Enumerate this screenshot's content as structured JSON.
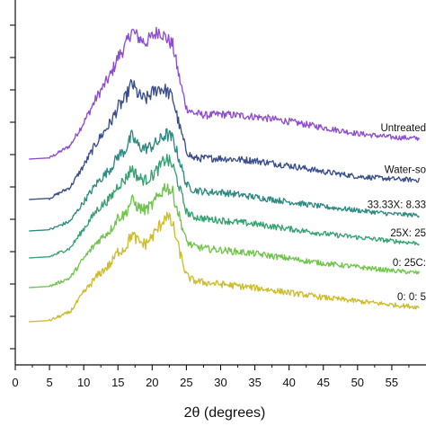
{
  "chart_data": {
    "type": "line",
    "title": "",
    "xlabel": "2θ (degrees)",
    "ylabel": "",
    "xlim": [
      0,
      60
    ],
    "xticks": [
      0,
      5,
      10,
      15,
      20,
      25,
      30,
      35,
      40,
      45,
      50,
      55
    ],
    "grid": false,
    "legend": "none",
    "y_tick_labels_visible": "clipped at left edge",
    "series": [
      {
        "name": "Untreated",
        "color": "#8e4ecf",
        "points": [
          [
            2,
            0
          ],
          [
            5,
            0.05
          ],
          [
            8,
            0.55
          ],
          [
            10,
            1.5
          ],
          [
            12,
            2.6
          ],
          [
            14,
            3.5
          ],
          [
            15,
            4.2
          ],
          [
            16,
            4.6
          ],
          [
            17,
            5.3
          ],
          [
            18,
            5.0
          ],
          [
            19,
            4.8
          ],
          [
            20,
            5.05
          ],
          [
            21,
            5.3
          ],
          [
            22,
            5.0
          ],
          [
            23,
            4.7
          ],
          [
            24,
            3.3
          ],
          [
            25,
            2.1
          ],
          [
            26,
            1.9
          ],
          [
            28,
            1.8
          ],
          [
            30,
            1.85
          ],
          [
            35,
            1.75
          ],
          [
            40,
            1.55
          ],
          [
            45,
            1.3
          ],
          [
            50,
            1.05
          ],
          [
            55,
            0.9
          ],
          [
            59,
            0.85
          ]
        ]
      },
      {
        "name": "Water-so",
        "color": "#3a4e8c",
        "points": [
          [
            2,
            0
          ],
          [
            5,
            0.05
          ],
          [
            8,
            0.5
          ],
          [
            10,
            1.4
          ],
          [
            12,
            2.4
          ],
          [
            14,
            3.2
          ],
          [
            15,
            3.8
          ],
          [
            16,
            4.1
          ],
          [
            17,
            4.8
          ],
          [
            18,
            4.3
          ],
          [
            19,
            4.1
          ],
          [
            20,
            4.4
          ],
          [
            21,
            4.6
          ],
          [
            22,
            4.5
          ],
          [
            23,
            4.2
          ],
          [
            24,
            3.0
          ],
          [
            25,
            2.0
          ],
          [
            26,
            1.7
          ],
          [
            28,
            1.7
          ],
          [
            30,
            1.7
          ],
          [
            35,
            1.6
          ],
          [
            40,
            1.4
          ],
          [
            45,
            1.15
          ],
          [
            50,
            0.95
          ],
          [
            55,
            0.85
          ],
          [
            59,
            0.8
          ]
        ]
      },
      {
        "name": "33.33X: 8.33",
        "color": "#2e8a82",
        "points": [
          [
            2,
            0
          ],
          [
            5,
            0.05
          ],
          [
            8,
            0.4
          ],
          [
            10,
            1.2
          ],
          [
            12,
            2.0
          ],
          [
            14,
            2.6
          ],
          [
            15,
            3.1
          ],
          [
            16,
            3.3
          ],
          [
            17,
            3.9
          ],
          [
            18,
            3.5
          ],
          [
            19,
            3.4
          ],
          [
            20,
            3.5
          ],
          [
            21,
            3.7
          ],
          [
            22,
            4.0
          ],
          [
            23,
            3.8
          ],
          [
            24,
            2.9
          ],
          [
            25,
            1.9
          ],
          [
            26,
            1.7
          ],
          [
            28,
            1.6
          ],
          [
            30,
            1.6
          ],
          [
            35,
            1.4
          ],
          [
            40,
            1.2
          ],
          [
            45,
            1.0
          ],
          [
            50,
            0.85
          ],
          [
            55,
            0.7
          ],
          [
            59,
            0.65
          ]
        ]
      },
      {
        "name": "25X: 25",
        "color": "#35a271",
        "points": [
          [
            2,
            0
          ],
          [
            5,
            0.05
          ],
          [
            8,
            0.4
          ],
          [
            10,
            1.2
          ],
          [
            12,
            2.0
          ],
          [
            14,
            2.5
          ],
          [
            15,
            3.0
          ],
          [
            16,
            3.2
          ],
          [
            17,
            3.7
          ],
          [
            18,
            3.3
          ],
          [
            19,
            3.2
          ],
          [
            20,
            3.4
          ],
          [
            21,
            3.7
          ],
          [
            22,
            4.1
          ],
          [
            23,
            3.8
          ],
          [
            24,
            2.9
          ],
          [
            25,
            1.9
          ],
          [
            26,
            1.7
          ],
          [
            28,
            1.6
          ],
          [
            30,
            1.55
          ],
          [
            35,
            1.4
          ],
          [
            40,
            1.2
          ],
          [
            45,
            1.0
          ],
          [
            50,
            0.85
          ],
          [
            55,
            0.7
          ],
          [
            59,
            0.6
          ]
        ]
      },
      {
        "name": "0: 25C:",
        "color": "#6fc64a",
        "points": [
          [
            2,
            0
          ],
          [
            5,
            0.05
          ],
          [
            8,
            0.4
          ],
          [
            10,
            1.2
          ],
          [
            12,
            1.9
          ],
          [
            14,
            2.4
          ],
          [
            15,
            2.9
          ],
          [
            16,
            3.0
          ],
          [
            17,
            3.6
          ],
          [
            18,
            3.3
          ],
          [
            19,
            3.2
          ],
          [
            20,
            3.4
          ],
          [
            21,
            3.8
          ],
          [
            22,
            4.2
          ],
          [
            23,
            3.9
          ],
          [
            24,
            2.9
          ],
          [
            25,
            1.9
          ],
          [
            26,
            1.7
          ],
          [
            28,
            1.6
          ],
          [
            30,
            1.55
          ],
          [
            35,
            1.4
          ],
          [
            40,
            1.2
          ],
          [
            45,
            1.0
          ],
          [
            50,
            0.85
          ],
          [
            55,
            0.7
          ],
          [
            59,
            0.6
          ]
        ]
      },
      {
        "name": "0: 0: 5",
        "color": "#cdbd2c",
        "points": [
          [
            2,
            0
          ],
          [
            5,
            0.05
          ],
          [
            8,
            0.4
          ],
          [
            10,
            1.2
          ],
          [
            12,
            1.9
          ],
          [
            14,
            2.4
          ],
          [
            15,
            2.9
          ],
          [
            16,
            3.0
          ],
          [
            17,
            3.6
          ],
          [
            18,
            3.3
          ],
          [
            19,
            3.2
          ],
          [
            20,
            3.5
          ],
          [
            21,
            3.9
          ],
          [
            22,
            4.4
          ],
          [
            23,
            4.0
          ],
          [
            24,
            2.9
          ],
          [
            25,
            1.9
          ],
          [
            26,
            1.7
          ],
          [
            28,
            1.6
          ],
          [
            30,
            1.55
          ],
          [
            35,
            1.4
          ],
          [
            40,
            1.2
          ],
          [
            45,
            1.0
          ],
          [
            50,
            0.85
          ],
          [
            55,
            0.7
          ],
          [
            59,
            0.6
          ]
        ]
      }
    ]
  }
}
